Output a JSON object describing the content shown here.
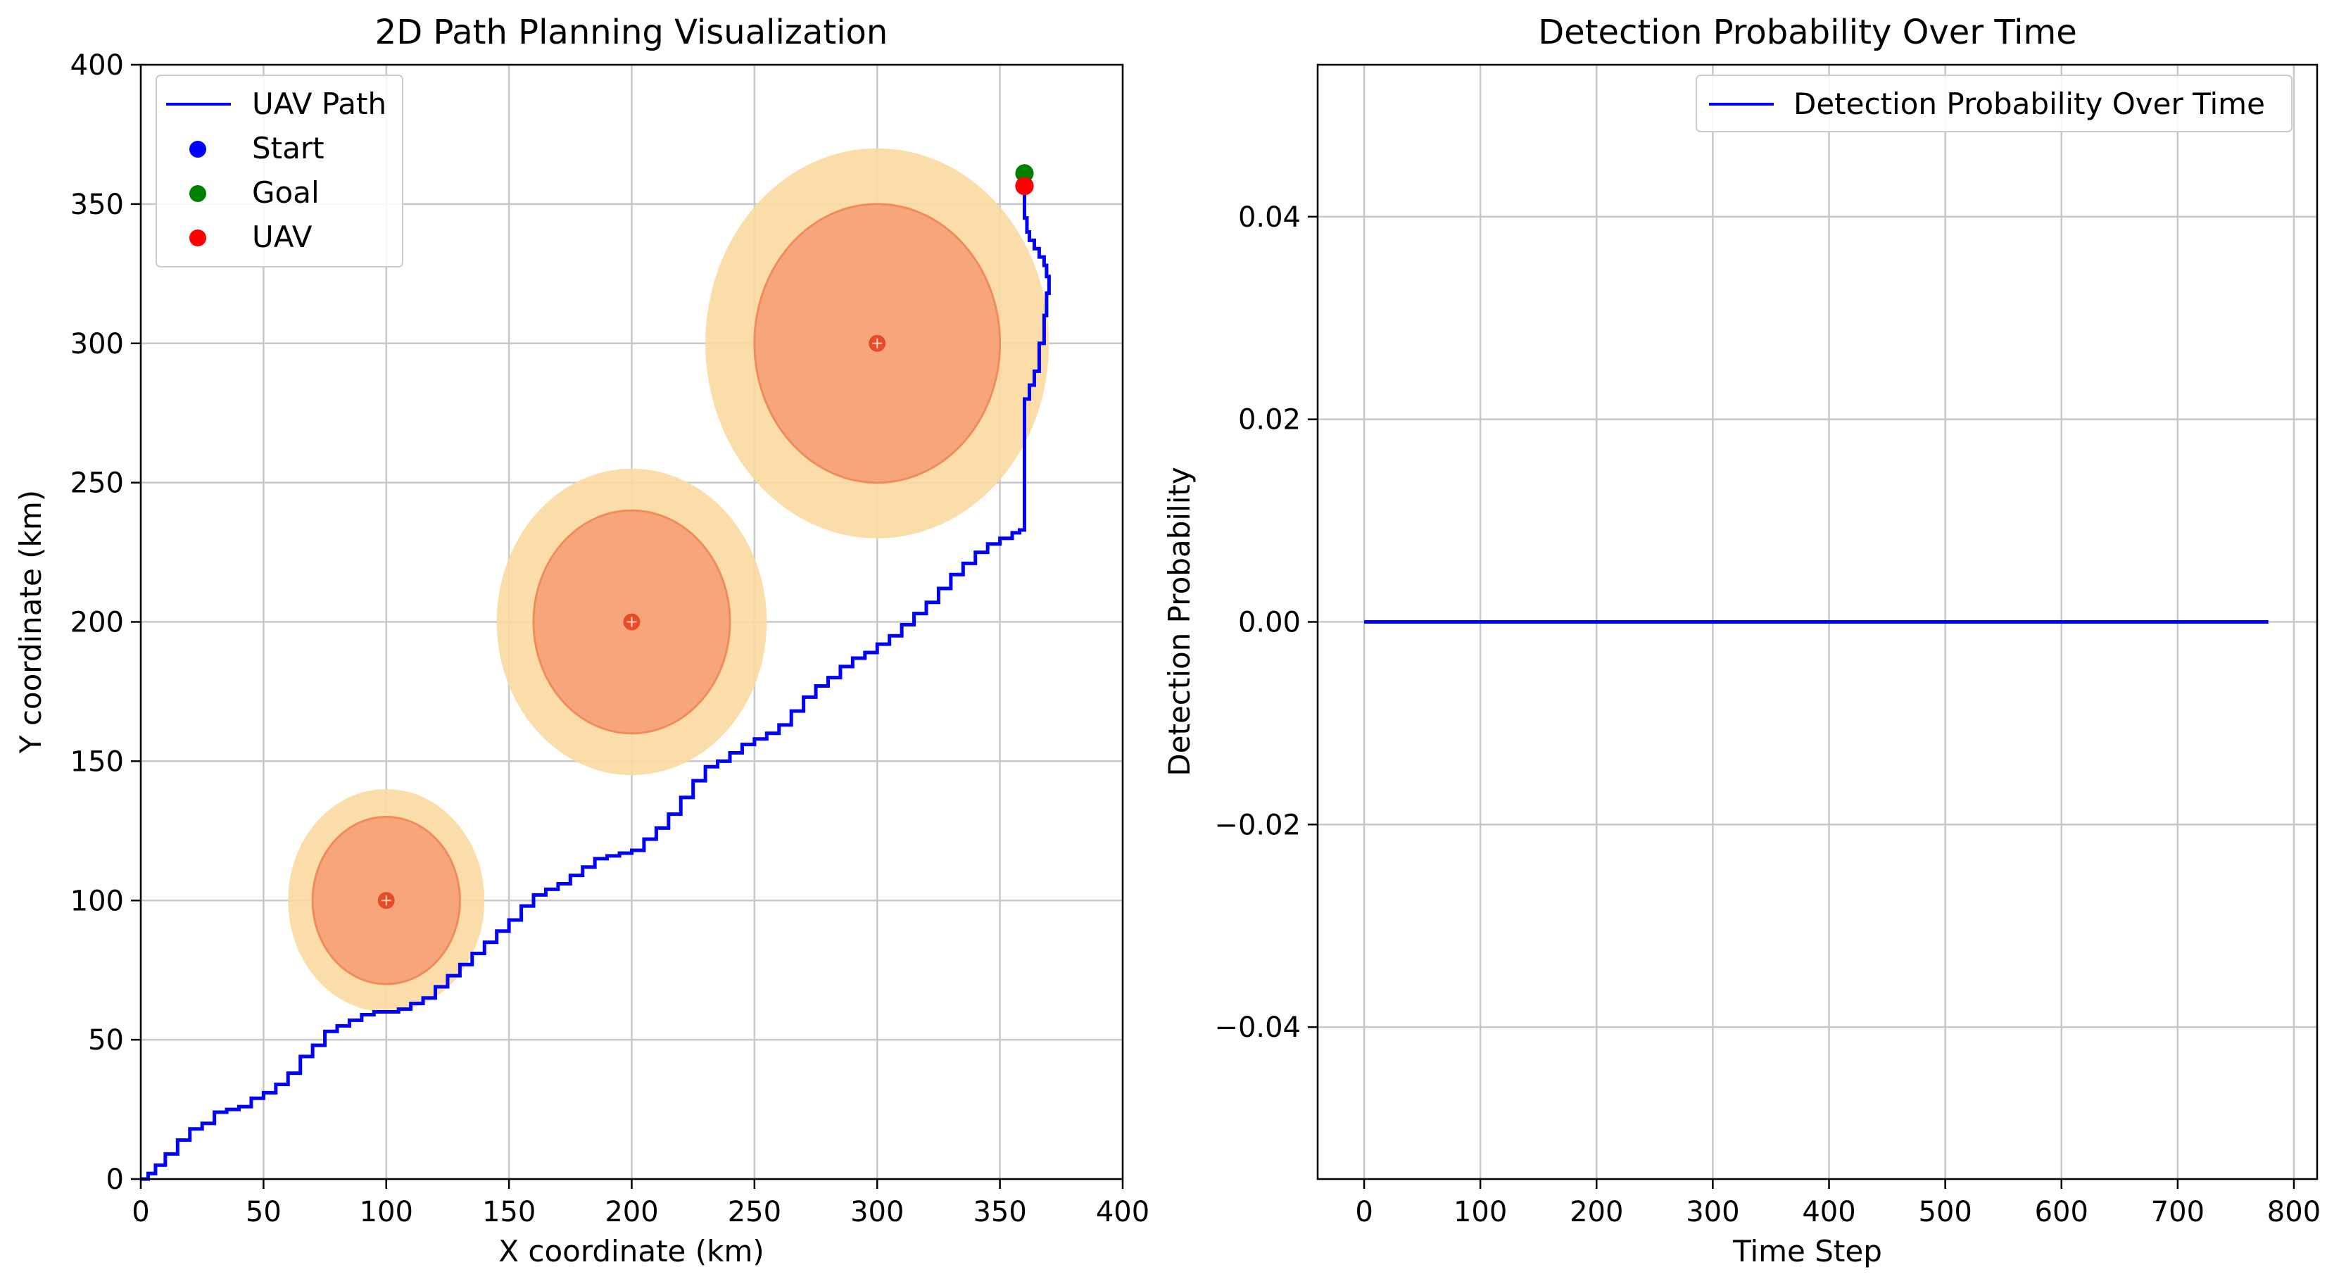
{
  "colors": {
    "path": "#0000ff",
    "start": "#0000ff",
    "goal": "#008000",
    "uav": "#ff0000",
    "threat_outer": "#fbd9a0",
    "threat_inner": "#f7a57a",
    "threat_center": "#e84a2a",
    "grid": "#c8c8c8"
  },
  "chart_data": [
    {
      "type": "line",
      "title": "2D Path Planning Visualization",
      "xlabel": "X coordinate (km)",
      "ylabel": "Y coordinate (km)",
      "xlim": [
        0,
        400
      ],
      "ylim": [
        0,
        400
      ],
      "xticks": [
        0,
        50,
        100,
        150,
        200,
        250,
        300,
        350,
        400
      ],
      "yticks": [
        0,
        50,
        100,
        150,
        200,
        250,
        300,
        350,
        400
      ],
      "grid": true,
      "legend": {
        "placement": "top-left",
        "entries": [
          {
            "label": "UAV Path",
            "marker": "line",
            "color": "#0000ff"
          },
          {
            "label": "Start",
            "marker": "dot",
            "color": "#0000ff"
          },
          {
            "label": "Goal",
            "marker": "dot",
            "color": "#008000"
          },
          {
            "label": "UAV",
            "marker": "dot",
            "color": "#ff0000"
          }
        ]
      },
      "threats": [
        {
          "center": [
            100,
            100
          ],
          "outer_radius": 40,
          "inner_radius": 30
        },
        {
          "center": [
            200,
            200
          ],
          "outer_radius": 55,
          "inner_radius": 40
        },
        {
          "center": [
            300,
            300
          ],
          "outer_radius": 70,
          "inner_radius": 50
        }
      ],
      "series": [
        {
          "name": "UAV Path",
          "x": [
            0,
            3,
            6,
            10,
            15,
            20,
            25,
            30,
            35,
            40,
            45,
            50,
            55,
            60,
            65,
            70,
            75,
            80,
            85,
            90,
            95,
            100,
            105,
            110,
            115,
            120,
            125,
            130,
            135,
            140,
            145,
            150,
            155,
            160,
            165,
            170,
            175,
            180,
            185,
            190,
            195,
            200,
            205,
            210,
            215,
            220,
            225,
            230,
            235,
            240,
            245,
            250,
            255,
            260,
            265,
            270,
            275,
            280,
            285,
            290,
            295,
            300,
            305,
            310,
            315,
            320,
            325,
            330,
            335,
            340,
            345,
            350,
            355,
            358,
            360,
            360,
            360,
            360,
            360,
            362,
            364,
            366,
            368,
            369,
            370,
            369,
            368,
            366,
            364,
            362,
            361,
            360,
            360,
            360
          ],
          "y": [
            0,
            2,
            5,
            9,
            14,
            18,
            20,
            24,
            25,
            26,
            29,
            31,
            34,
            38,
            44,
            48,
            53,
            55,
            57,
            59,
            60,
            60,
            61,
            63,
            65,
            69,
            73,
            77,
            81,
            85,
            89,
            93,
            98,
            102,
            104,
            106,
            109,
            112,
            115,
            116,
            117,
            118,
            122,
            126,
            131,
            137,
            143,
            148,
            150,
            153,
            156,
            158,
            160,
            163,
            168,
            173,
            177,
            180,
            184,
            187,
            189,
            192,
            195,
            199,
            203,
            207,
            212,
            217,
            221,
            225,
            228,
            230,
            232,
            233,
            235,
            260,
            270,
            275,
            280,
            285,
            290,
            300,
            310,
            318,
            324,
            328,
            331,
            334,
            337,
            340,
            345,
            352,
            356,
            358
          ]
        }
      ],
      "points": [
        {
          "name": "Start",
          "x": 360,
          "y": 358,
          "color": "#0000ff"
        },
        {
          "name": "Goal",
          "x": 360,
          "y": 360,
          "color": "#008000"
        },
        {
          "name": "UAV",
          "x": 360,
          "y": 358,
          "color": "#ff0000"
        }
      ]
    },
    {
      "type": "line",
      "title": "Detection Probability Over Time",
      "xlabel": "Time Step",
      "ylabel": "Detection Probability",
      "xlim": [
        -40,
        820
      ],
      "ylim": [
        -0.055,
        0.055
      ],
      "xticks": [
        0,
        100,
        200,
        300,
        400,
        500,
        600,
        700,
        800
      ],
      "yticks": [
        -0.04,
        -0.02,
        0.0,
        0.02,
        0.04
      ],
      "ytick_labels": [
        "−0.04",
        "−0.02",
        "0.00",
        "0.02",
        "0.04"
      ],
      "grid": true,
      "legend": {
        "placement": "top-right",
        "entries": [
          {
            "label": "Detection Probability Over Time",
            "marker": "line",
            "color": "#0000ff"
          }
        ]
      },
      "series": [
        {
          "name": "Detection Probability Over Time",
          "x": [
            0,
            778
          ],
          "y": [
            0.0,
            0.0
          ]
        }
      ]
    }
  ]
}
